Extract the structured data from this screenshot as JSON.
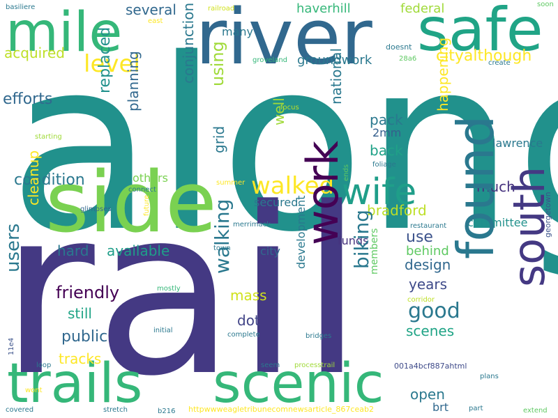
{
  "words": [
    {
      "text": "along",
      "color": "#21918c"
    },
    {
      "text": "rail",
      "color": "#443983"
    },
    {
      "text": "side",
      "color": "#7ad151"
    },
    {
      "text": "river",
      "color": "#31688e"
    },
    {
      "text": "mile",
      "color": "#35b779"
    },
    {
      "text": "safe",
      "color": "#20a486"
    },
    {
      "text": "trails",
      "color": "#35b779"
    },
    {
      "text": "scenic",
      "color": "#35b779"
    },
    {
      "text": "work",
      "color": "#440154"
    },
    {
      "text": "found",
      "color": "#2a788e"
    },
    {
      "text": "south",
      "color": "#443983"
    },
    {
      "text": "wife",
      "color": "#1f9e89"
    },
    {
      "text": "level",
      "color": "#fde725"
    },
    {
      "text": "walked",
      "color": "#fde725"
    },
    {
      "text": "several",
      "color": "#31688e"
    },
    {
      "text": "haverhill",
      "color": "#35b779"
    },
    {
      "text": "federal",
      "color": "#a0da39"
    },
    {
      "text": "railroad",
      "color": "#d0e11c"
    },
    {
      "text": "soon",
      "color": "#5ec962"
    },
    {
      "text": "basiliere",
      "color": "#2a788e"
    },
    {
      "text": "east",
      "color": "#fde725"
    },
    {
      "text": "many",
      "color": "#2a788e"
    },
    {
      "text": "doesnt",
      "color": "#2a788e"
    },
    {
      "text": "acquired",
      "color": "#bddf26"
    },
    {
      "text": "cityalthough",
      "color": "#fde725"
    },
    {
      "text": "groveland",
      "color": "#35b779"
    },
    {
      "text": "28a6",
      "color": "#5ec962"
    },
    {
      "text": "groundwork",
      "color": "#2a788e"
    },
    {
      "text": "create",
      "color": "#2a788e"
    },
    {
      "text": "efforts",
      "color": "#31688e"
    },
    {
      "text": "focus",
      "color": "#bddf26"
    },
    {
      "text": "national",
      "color": "#2a788e"
    },
    {
      "text": "pack",
      "color": "#2a788e"
    },
    {
      "text": "2mm",
      "color": "#355f8d"
    },
    {
      "text": "starting",
      "color": "#a0da39"
    },
    {
      "text": "lawrence",
      "color": "#2a788e"
    },
    {
      "text": "back",
      "color": "#1fa187"
    },
    {
      "text": "foliage",
      "color": "#2a788e"
    },
    {
      "text": "condition",
      "color": "#2a788e"
    },
    {
      "text": "others",
      "color": "#7ad151"
    },
    {
      "text": "summer",
      "color": "#fde725"
    },
    {
      "text": "ends",
      "color": "#5ec962"
    },
    {
      "text": "much",
      "color": "#46327e"
    },
    {
      "text": "connect",
      "color": "#2a788e"
    },
    {
      "text": "secured",
      "color": "#2a788e"
    },
    {
      "text": "bradford",
      "color": "#bddf26"
    },
    {
      "text": "glimpses",
      "color": "#31688e"
    },
    {
      "text": "committee",
      "color": "#21918c"
    },
    {
      "text": "merrimack",
      "color": "#2a788e"
    },
    {
      "text": "restaurant",
      "color": "#2a788e"
    },
    {
      "text": "funds",
      "color": "#46327e"
    },
    {
      "text": "use",
      "color": "#3b528b"
    },
    {
      "text": "hard",
      "color": "#2a788e"
    },
    {
      "text": "available",
      "color": "#1f9e89"
    },
    {
      "text": "town",
      "color": "#2a788e"
    },
    {
      "text": "city",
      "color": "#31688e"
    },
    {
      "text": "behind",
      "color": "#5ec962"
    },
    {
      "text": "design",
      "color": "#31688e"
    },
    {
      "text": "friendly",
      "color": "#440154"
    },
    {
      "text": "mostly",
      "color": "#35b779"
    },
    {
      "text": "mass",
      "color": "#d0e11c"
    },
    {
      "text": "years",
      "color": "#3e4a89"
    },
    {
      "text": "still",
      "color": "#20a486"
    },
    {
      "text": "corridor",
      "color": "#bddf26"
    },
    {
      "text": "good",
      "color": "#2a788e"
    },
    {
      "text": "dot",
      "color": "#414487"
    },
    {
      "text": "scenes",
      "color": "#20a486"
    },
    {
      "text": "public",
      "color": "#31688e"
    },
    {
      "text": "initial",
      "color": "#2a788e"
    },
    {
      "text": "complete",
      "color": "#2a788e"
    },
    {
      "text": "bridges",
      "color": "#2a788e"
    },
    {
      "text": "tracks",
      "color": "#fde725"
    },
    {
      "text": "loop",
      "color": "#2a788e"
    },
    {
      "text": "seem",
      "color": "#2a788e"
    },
    {
      "text": "processtrail",
      "color": "#a0da39"
    },
    {
      "text": "001a4bcf887ahtml",
      "color": "#3e4a89"
    },
    {
      "text": "plans",
      "color": "#2a788e"
    },
    {
      "text": "open",
      "color": "#2a788e"
    },
    {
      "text": "wont",
      "color": "#fde725"
    },
    {
      "text": "brt",
      "color": "#31688e"
    },
    {
      "text": "covered",
      "color": "#2a788e"
    },
    {
      "text": "stretch",
      "color": "#2a788e"
    },
    {
      "text": "b216",
      "color": "#2a788e"
    },
    {
      "text": "httpwwweagletribunecomnewsarticle_867ceab2",
      "color": "#fde725"
    },
    {
      "text": "part",
      "color": "#2a788e"
    },
    {
      "text": "extend",
      "color": "#5ec962"
    },
    {
      "text": "users",
      "color": "#2a788e"
    },
    {
      "text": "cleanup",
      "color": "#fde725"
    },
    {
      "text": "walking",
      "color": "#2a788e"
    },
    {
      "text": "biking",
      "color": "#2a788e"
    },
    {
      "text": "replaced",
      "color": "#21918c"
    },
    {
      "text": "planning",
      "color": "#31688e"
    },
    {
      "text": "conjunction",
      "color": "#2a788e"
    },
    {
      "text": "using",
      "color": "#a0da39"
    },
    {
      "text": "grid",
      "color": "#2a788e"
    },
    {
      "text": "well",
      "color": "#a0da39"
    },
    {
      "text": "happening",
      "color": "#fde725"
    },
    {
      "text": "development",
      "color": "#2a788e"
    },
    {
      "text": "members",
      "color": "#5ec962"
    },
    {
      "text": "georgetown",
      "color": "#3b528b"
    },
    {
      "text": "future",
      "color": "#fde725"
    },
    {
      "text": "11e4",
      "color": "#3b528b"
    }
  ]
}
